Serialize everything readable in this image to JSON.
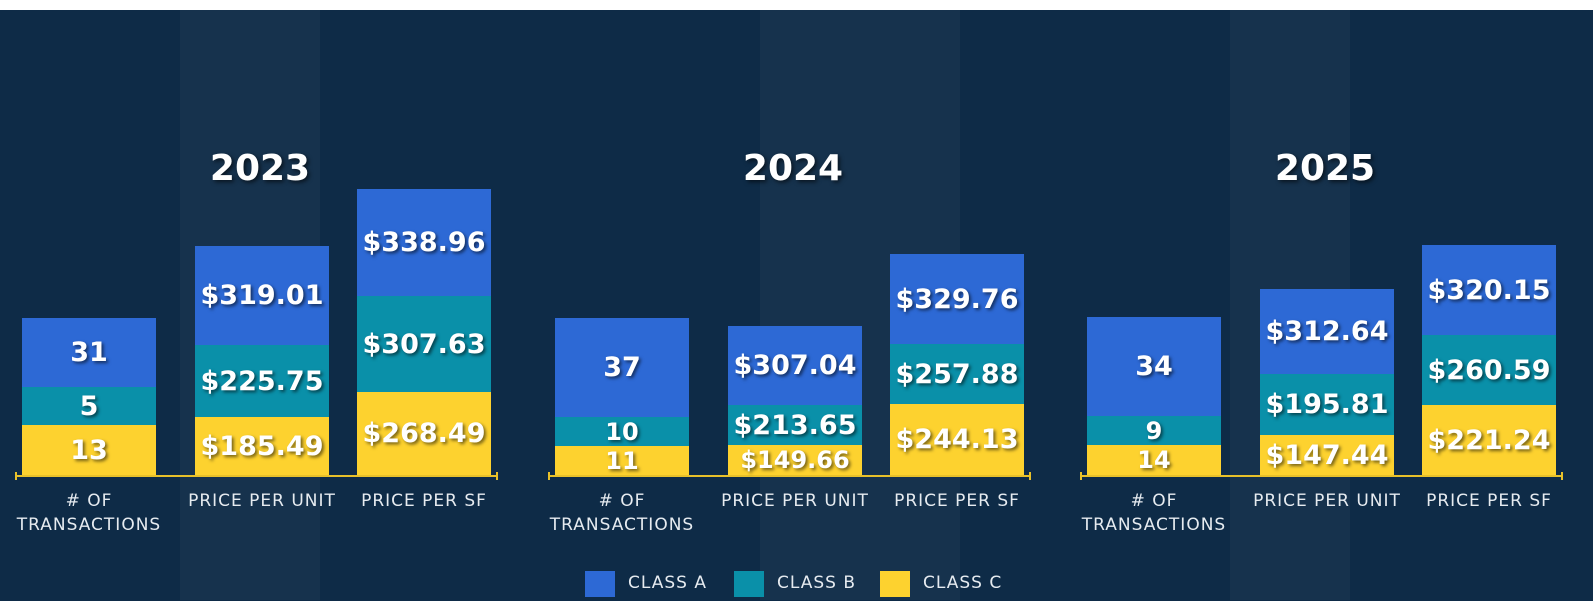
{
  "groups": [
    {
      "year": "2023",
      "bars": [
        {
          "label": "# OF TRANSACTIONS",
          "segments": [
            31,
            5,
            13
          ]
        },
        {
          "label": "PRICE PER UNIT",
          "segments": [
            "$319.01",
            "$225.75",
            "$185.49"
          ]
        },
        {
          "label": "PRICE PER SF",
          "segments": [
            "$338.96",
            "$307.63",
            "$268.49"
          ]
        }
      ]
    },
    {
      "year": "2024",
      "bars": [
        {
          "label": "# OF TRANSACTIONS",
          "segments": [
            37,
            10,
            11
          ]
        },
        {
          "label": "PRICE PER UNIT",
          "segments": [
            "$307.04",
            "$213.65",
            "$149.66"
          ]
        },
        {
          "label": "PRICE PER SF",
          "segments": [
            "$329.76",
            "$257.88",
            "$244.13"
          ]
        }
      ]
    },
    {
      "year": "2025",
      "bars": [
        {
          "label": "# OF TRANSACTIONS",
          "segments": [
            34,
            9,
            14
          ]
        },
        {
          "label": "PRICE PER UNIT",
          "segments": [
            "$312.64",
            "$195.81",
            "$147.44"
          ]
        },
        {
          "label": "PRICE PER SF",
          "segments": [
            "$320.15",
            "$260.59",
            "$221.24"
          ]
        }
      ]
    }
  ],
  "legend": [
    "CLASS A",
    "CLASS B",
    "CLASS C"
  ]
}
